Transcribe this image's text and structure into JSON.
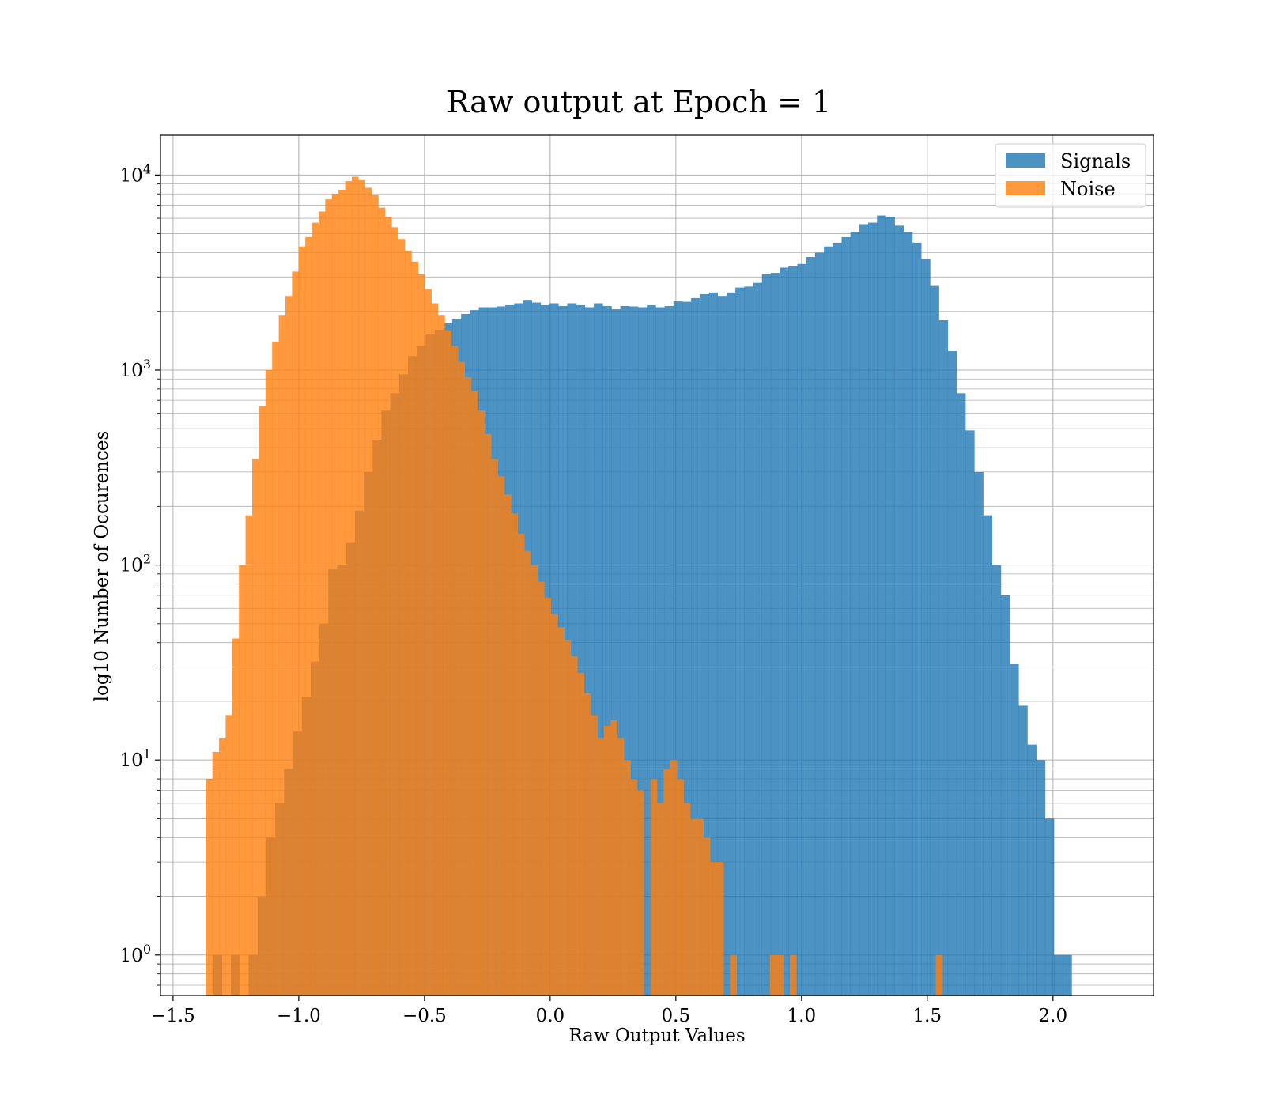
{
  "chart_data": {
    "type": "bar",
    "title": "Raw output at Epoch = 1",
    "xlabel": "Raw Output Values",
    "ylabel": "log10 Number of Occurences",
    "xlim": [
      -1.55,
      2.4
    ],
    "ylim": [
      0.62,
      16000
    ],
    "yscale": "log",
    "grid": true,
    "legend_placement": "top-right",
    "x_ticks": [
      {
        "value": -1.5,
        "label": "−1.5"
      },
      {
        "value": -1.0,
        "label": "−1.0"
      },
      {
        "value": -0.5,
        "label": "−0.5"
      },
      {
        "value": 0.0,
        "label": "0.0"
      },
      {
        "value": 0.5,
        "label": "0.5"
      },
      {
        "value": 1.0,
        "label": "1.0"
      },
      {
        "value": 1.5,
        "label": "1.5"
      },
      {
        "value": 2.0,
        "label": "2.0"
      }
    ],
    "y_ticks": [
      {
        "value": 1,
        "base": "10",
        "exp": "0"
      },
      {
        "value": 10,
        "base": "10",
        "exp": "1"
      },
      {
        "value": 100,
        "base": "10",
        "exp": "2"
      },
      {
        "value": 1000,
        "base": "10",
        "exp": "3"
      },
      {
        "value": 10000,
        "base": "10",
        "exp": "4"
      }
    ],
    "series": [
      {
        "name": "Signals",
        "color": "#1f77b4",
        "opacity": 0.8,
        "x_start": -1.34,
        "bin_width": 0.0352,
        "values": [
          1,
          0,
          1,
          0,
          1,
          2,
          4,
          6,
          9,
          14,
          21,
          32,
          50,
          95,
          100,
          130,
          190,
          300,
          440,
          620,
          760,
          950,
          1180,
          1330,
          1520,
          1610,
          1740,
          1820,
          1940,
          2030,
          2100,
          2100,
          2120,
          2150,
          2200,
          2270,
          2220,
          2150,
          2200,
          2130,
          2200,
          2150,
          2100,
          2200,
          2130,
          2050,
          2130,
          2120,
          2100,
          2150,
          2100,
          2130,
          2250,
          2240,
          2340,
          2450,
          2500,
          2400,
          2500,
          2650,
          2680,
          2800,
          3100,
          3150,
          3350,
          3400,
          3500,
          3800,
          4000,
          4300,
          4500,
          4800,
          5100,
          5600,
          5700,
          6200,
          6100,
          5500,
          5100,
          4500,
          3700,
          2700,
          1800,
          1250,
          760,
          490,
          300,
          180,
          100,
          70,
          31,
          19,
          12,
          10,
          5,
          1,
          1
        ]
      },
      {
        "name": "Noise",
        "color": "#ff7f0e",
        "opacity": 0.8,
        "x_start": -1.37,
        "bin_width": 0.0264,
        "values": [
          8,
          11,
          13,
          17,
          42,
          100,
          180,
          350,
          650,
          1000,
          1400,
          1900,
          2400,
          3200,
          4300,
          4800,
          5700,
          6500,
          7500,
          8000,
          8400,
          9300,
          9800,
          9400,
          8600,
          7900,
          6800,
          6100,
          5400,
          4700,
          4100,
          3600,
          3100,
          2600,
          2200,
          1900,
          1600,
          1330,
          1100,
          920,
          780,
          620,
          470,
          350,
          285,
          230,
          184,
          145,
          118,
          100,
          82,
          68,
          56,
          48,
          41,
          34,
          28,
          22,
          17,
          13,
          15,
          16,
          13,
          10,
          8,
          7,
          0,
          8,
          6,
          9,
          10,
          8,
          6,
          5,
          5,
          4,
          3,
          3,
          0,
          1,
          0,
          0,
          0,
          0,
          0,
          1,
          1,
          0,
          1,
          0,
          0,
          0,
          0,
          0,
          0,
          0,
          0,
          0,
          0,
          0,
          0,
          0,
          0,
          0,
          0,
          0,
          0,
          0,
          0,
          0,
          1
        ]
      }
    ]
  }
}
